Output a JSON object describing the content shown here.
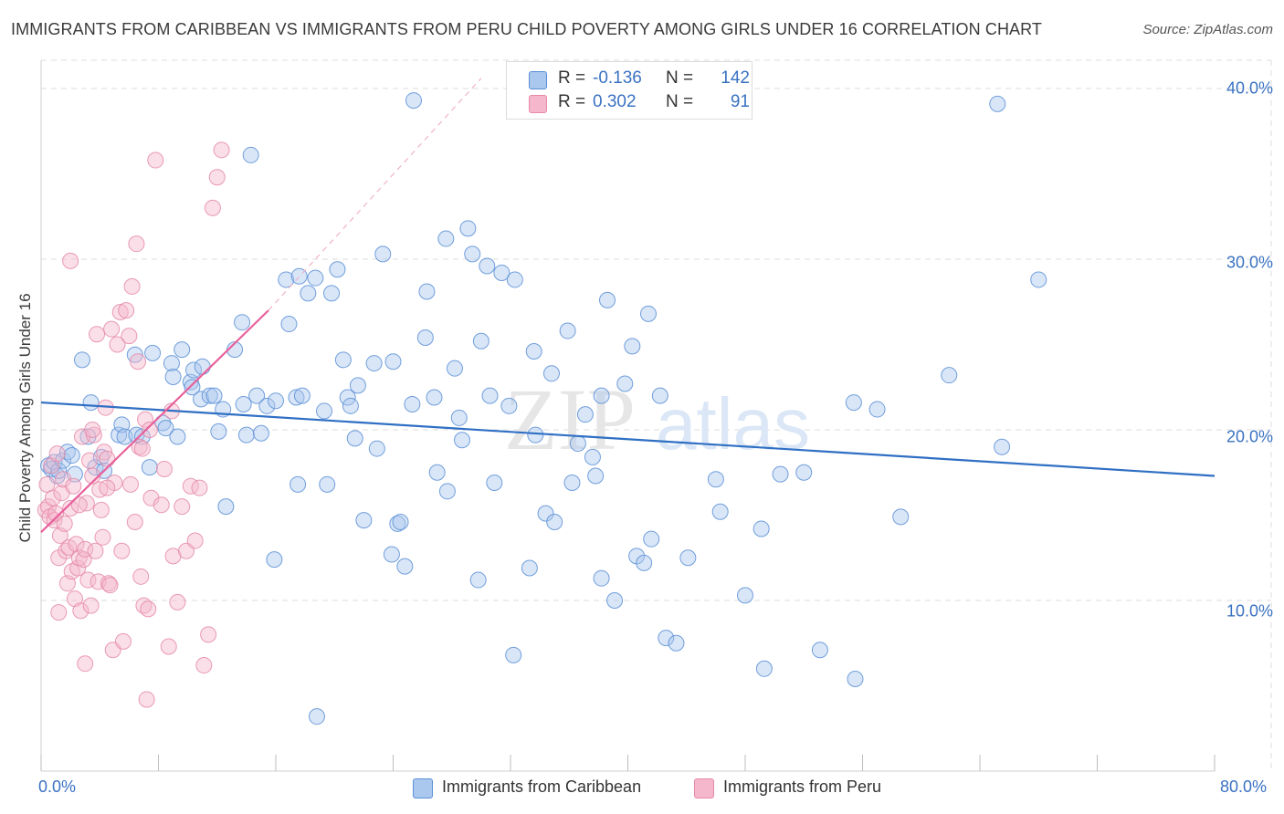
{
  "header": {
    "title": "IMMIGRANTS FROM CARIBBEAN VS IMMIGRANTS FROM PERU CHILD POVERTY AMONG GIRLS UNDER 16 CORRELATION CHART",
    "source": "Source: ZipAtlas.com"
  },
  "watermark": {
    "zip": "ZIP",
    "atlas": "atlas"
  },
  "colors": {
    "blue_fill": "#aac7ee",
    "blue_stroke": "#5b8fd6",
    "blue_line": "#2f6fc4",
    "pink_fill": "#f5b7cb",
    "pink_stroke": "#e58aa9",
    "pink_line": "#e8609a",
    "grid": "#dedede",
    "tick_text": "#3a72c2"
  },
  "legend_top": {
    "row1": {
      "r_label": "R =",
      "r_value": "-0.136",
      "n_label": "N =",
      "n_value": "142"
    },
    "row2": {
      "r_label": "R =",
      "r_value": "0.302",
      "n_label": "N =",
      "n_value": "91"
    }
  },
  "legend_bottom": {
    "series1": "Immigrants from Caribbean",
    "series2": "Immigrants from Peru"
  },
  "axis": {
    "y_label": "Child Poverty Among Girls Under 16",
    "x_min_label": "0.0%",
    "x_max_label": "80.0%",
    "y_ticks": [
      "10.0%",
      "20.0%",
      "30.0%",
      "40.0%"
    ]
  },
  "chart_data": {
    "type": "scatter",
    "title": "IMMIGRANTS FROM CARIBBEAN VS IMMIGRANTS FROM PERU CHILD POVERTY AMONG GIRLS UNDER 16 CORRELATION CHART",
    "xlabel": "",
    "ylabel": "Child Poverty Among Girls Under 16",
    "xlim": [
      0,
      80
    ],
    "ylim": [
      0,
      40
    ],
    "x_ticks": [
      0,
      80
    ],
    "y_ticks": [
      10,
      20,
      30,
      40
    ],
    "grid": true,
    "legend": "bottom",
    "series": [
      {
        "name": "Immigrants from Caribbean",
        "r": -0.136,
        "n": 142,
        "trend": {
          "x": [
            0,
            80
          ],
          "y": [
            21.6,
            17.3
          ]
        },
        "points": [
          [
            0.5,
            17.9
          ],
          [
            0.7,
            17.7
          ],
          [
            0.9,
            18.1
          ],
          [
            1.1,
            17.3
          ],
          [
            1.2,
            17.6
          ],
          [
            1.5,
            18.2
          ],
          [
            1.8,
            18.7
          ],
          [
            2.1,
            18.5
          ],
          [
            2.3,
            17.4
          ],
          [
            2.8,
            24.1
          ],
          [
            3.2,
            19.6
          ],
          [
            3.4,
            21.6
          ],
          [
            3.7,
            17.8
          ],
          [
            4.1,
            18.4
          ],
          [
            4.3,
            17.6
          ],
          [
            5.3,
            19.7
          ],
          [
            5.5,
            20.3
          ],
          [
            5.7,
            19.6
          ],
          [
            6.4,
            24.4
          ],
          [
            6.5,
            19.7
          ],
          [
            6.9,
            19.6
          ],
          [
            7.4,
            17.8
          ],
          [
            7.6,
            24.5
          ],
          [
            8.3,
            20.4
          ],
          [
            8.5,
            20.1
          ],
          [
            8.9,
            23.9
          ],
          [
            9.3,
            19.6
          ],
          [
            9.0,
            23.1
          ],
          [
            9.6,
            24.7
          ],
          [
            10.2,
            22.8
          ],
          [
            10.3,
            22.5
          ],
          [
            10.4,
            23.5
          ],
          [
            10.9,
            21.8
          ],
          [
            11.0,
            23.7
          ],
          [
            11.5,
            22.0
          ],
          [
            11.8,
            22.0
          ],
          [
            12.1,
            19.9
          ],
          [
            12.4,
            21.2
          ],
          [
            12.6,
            15.5
          ],
          [
            13.2,
            24.7
          ],
          [
            13.7,
            26.3
          ],
          [
            13.8,
            21.5
          ],
          [
            14.0,
            19.7
          ],
          [
            14.3,
            36.1
          ],
          [
            14.7,
            22.0
          ],
          [
            15.0,
            19.8
          ],
          [
            15.4,
            21.4
          ],
          [
            15.9,
            12.4
          ],
          [
            16.0,
            21.7
          ],
          [
            16.7,
            28.8
          ],
          [
            16.9,
            26.2
          ],
          [
            17.4,
            21.9
          ],
          [
            17.5,
            16.8
          ],
          [
            17.8,
            22.0
          ],
          [
            18.2,
            28.0
          ],
          [
            18.7,
            28.9
          ],
          [
            18.8,
            3.2
          ],
          [
            19.3,
            21.1
          ],
          [
            19.5,
            16.8
          ],
          [
            19.8,
            28.0
          ],
          [
            20.2,
            29.4
          ],
          [
            20.6,
            24.1
          ],
          [
            20.9,
            21.9
          ],
          [
            21.1,
            21.4
          ],
          [
            21.4,
            19.5
          ],
          [
            21.6,
            22.6
          ],
          [
            22.0,
            14.7
          ],
          [
            22.7,
            23.9
          ],
          [
            22.9,
            18.9
          ],
          [
            23.3,
            30.3
          ],
          [
            23.9,
            12.7
          ],
          [
            24.0,
            24.0
          ],
          [
            24.3,
            14.5
          ],
          [
            24.5,
            14.6
          ],
          [
            24.8,
            12.0
          ],
          [
            25.4,
            39.3
          ],
          [
            25.3,
            21.5
          ],
          [
            26.2,
            25.4
          ],
          [
            26.3,
            28.1
          ],
          [
            26.8,
            21.9
          ],
          [
            27.0,
            17.5
          ],
          [
            27.6,
            31.2
          ],
          [
            27.7,
            16.4
          ],
          [
            28.2,
            23.6
          ],
          [
            28.5,
            20.7
          ],
          [
            28.7,
            19.4
          ],
          [
            29.1,
            31.8
          ],
          [
            29.4,
            30.3
          ],
          [
            29.8,
            11.2
          ],
          [
            30.0,
            25.2
          ],
          [
            30.4,
            29.6
          ],
          [
            30.6,
            22.0
          ],
          [
            30.9,
            16.9
          ],
          [
            31.4,
            29.2
          ],
          [
            31.9,
            21.4
          ],
          [
            32.2,
            6.8
          ],
          [
            32.3,
            28.8
          ],
          [
            33.3,
            11.9
          ],
          [
            33.6,
            24.6
          ],
          [
            33.7,
            19.7
          ],
          [
            34.4,
            15.1
          ],
          [
            34.8,
            23.3
          ],
          [
            35.0,
            14.6
          ],
          [
            35.9,
            25.8
          ],
          [
            36.2,
            16.9
          ],
          [
            36.6,
            19.2
          ],
          [
            37.1,
            20.9
          ],
          [
            37.6,
            18.4
          ],
          [
            37.8,
            17.3
          ],
          [
            38.2,
            22.0
          ],
          [
            38.2,
            11.3
          ],
          [
            38.6,
            27.6
          ],
          [
            39.1,
            10.0
          ],
          [
            39.8,
            22.7
          ],
          [
            40.3,
            24.9
          ],
          [
            40.6,
            12.6
          ],
          [
            41.1,
            12.2
          ],
          [
            41.4,
            26.8
          ],
          [
            41.6,
            13.6
          ],
          [
            42.2,
            22.0
          ],
          [
            42.6,
            7.8
          ],
          [
            43.3,
            7.5
          ],
          [
            44.1,
            12.5
          ],
          [
            46.0,
            17.1
          ],
          [
            46.3,
            15.2
          ],
          [
            48.0,
            10.3
          ],
          [
            49.1,
            14.2
          ],
          [
            49.3,
            6.0
          ],
          [
            50.4,
            17.4
          ],
          [
            52.0,
            17.5
          ],
          [
            53.1,
            7.1
          ],
          [
            55.5,
            5.4
          ],
          [
            55.4,
            21.6
          ],
          [
            57.0,
            21.2
          ],
          [
            58.6,
            14.9
          ],
          [
            61.9,
            23.2
          ],
          [
            65.2,
            39.1
          ],
          [
            65.5,
            19.0
          ],
          [
            68.0,
            28.8
          ],
          [
            17.6,
            29.0
          ]
        ]
      },
      {
        "name": "Immigrants from Peru",
        "r": 0.302,
        "n": 91,
        "trend": {
          "x": [
            0,
            15.5
          ],
          "y": [
            14.0,
            27.0
          ]
        },
        "trend_extension": {
          "x": [
            15.5,
            30
          ],
          "y": [
            27.0,
            40.6
          ]
        },
        "points": [
          [
            0.3,
            15.3
          ],
          [
            0.4,
            16.8
          ],
          [
            0.5,
            15.5
          ],
          [
            0.6,
            14.9
          ],
          [
            0.7,
            17.9
          ],
          [
            0.8,
            16.0
          ],
          [
            0.9,
            14.7
          ],
          [
            1.0,
            15.1
          ],
          [
            1.1,
            18.6
          ],
          [
            1.2,
            12.5
          ],
          [
            1.3,
            13.8
          ],
          [
            1.4,
            16.3
          ],
          [
            1.5,
            17.1
          ],
          [
            1.6,
            14.5
          ],
          [
            1.7,
            12.9
          ],
          [
            1.8,
            11.0
          ],
          [
            1.9,
            13.1
          ],
          [
            2.0,
            15.4
          ],
          [
            2.1,
            11.7
          ],
          [
            2.2,
            16.7
          ],
          [
            2.3,
            10.1
          ],
          [
            2.4,
            13.3
          ],
          [
            2.5,
            11.9
          ],
          [
            2.6,
            12.5
          ],
          [
            2.7,
            9.4
          ],
          [
            2.8,
            19.6
          ],
          [
            2.9,
            12.4
          ],
          [
            3.0,
            13.0
          ],
          [
            3.1,
            15.7
          ],
          [
            3.2,
            11.2
          ],
          [
            3.3,
            18.2
          ],
          [
            3.4,
            9.7
          ],
          [
            3.5,
            17.3
          ],
          [
            3.6,
            19.7
          ],
          [
            3.7,
            12.9
          ],
          [
            3.8,
            25.6
          ],
          [
            3.9,
            11.1
          ],
          [
            4.0,
            16.5
          ],
          [
            4.1,
            15.3
          ],
          [
            4.2,
            13.7
          ],
          [
            4.3,
            18.7
          ],
          [
            4.4,
            21.3
          ],
          [
            4.5,
            18.3
          ],
          [
            4.6,
            11.0
          ],
          [
            4.7,
            10.9
          ],
          [
            4.8,
            25.9
          ],
          [
            4.9,
            7.1
          ],
          [
            5.0,
            16.9
          ],
          [
            5.2,
            25.0
          ],
          [
            5.4,
            26.9
          ],
          [
            5.6,
            7.6
          ],
          [
            5.8,
            27.0
          ],
          [
            6.0,
            25.5
          ],
          [
            6.2,
            28.4
          ],
          [
            6.4,
            14.6
          ],
          [
            6.5,
            30.9
          ],
          [
            6.6,
            24.0
          ],
          [
            6.7,
            19.0
          ],
          [
            6.8,
            11.4
          ],
          [
            6.9,
            18.9
          ],
          [
            7.0,
            9.7
          ],
          [
            7.1,
            20.6
          ],
          [
            7.2,
            4.2
          ],
          [
            7.4,
            20.0
          ],
          [
            7.5,
            16.0
          ],
          [
            7.8,
            35.8
          ],
          [
            8.2,
            15.6
          ],
          [
            8.4,
            17.7
          ],
          [
            8.7,
            7.3
          ],
          [
            9.0,
            12.6
          ],
          [
            9.3,
            9.9
          ],
          [
            9.6,
            15.5
          ],
          [
            9.9,
            12.9
          ],
          [
            10.2,
            16.7
          ],
          [
            10.5,
            13.5
          ],
          [
            10.8,
            16.6
          ],
          [
            11.1,
            6.2
          ],
          [
            11.4,
            8.0
          ],
          [
            11.7,
            33.0
          ],
          [
            12.0,
            34.8
          ],
          [
            12.3,
            36.4
          ],
          [
            2.0,
            29.9
          ],
          [
            3.5,
            20.0
          ],
          [
            1.2,
            9.3
          ],
          [
            5.5,
            12.9
          ],
          [
            6.1,
            16.8
          ],
          [
            8.9,
            21.1
          ],
          [
            3.0,
            6.3
          ],
          [
            4.5,
            16.6
          ],
          [
            2.6,
            15.6
          ],
          [
            7.3,
            9.5
          ]
        ]
      }
    ]
  }
}
